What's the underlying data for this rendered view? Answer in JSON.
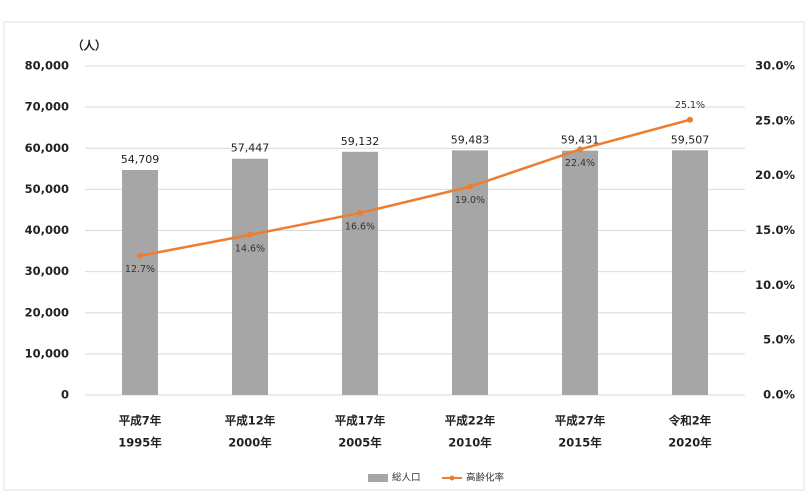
{
  "chart_data": {
    "type": "bar",
    "y_unit_label": "（人）",
    "categories": [
      [
        "平成7年",
        "1995年"
      ],
      [
        "平成12年",
        "2000年"
      ],
      [
        "平成17年",
        "2005年"
      ],
      [
        "平成22年",
        "2010年"
      ],
      [
        "平成27年",
        "2015年"
      ],
      [
        "令和2年",
        "2020年"
      ]
    ],
    "series": [
      {
        "name": "総人口",
        "type": "bar",
        "color": "#a6a6a6",
        "values": [
          54709,
          57447,
          59132,
          59483,
          59431,
          59507
        ],
        "value_labels": [
          "54,709",
          "57,447",
          "59,132",
          "59,483",
          "59,431",
          "59,507"
        ]
      },
      {
        "name": "高齢化率",
        "type": "line",
        "axis": "y2",
        "color": "#ed7d31",
        "values": [
          12.7,
          14.6,
          16.6,
          19.0,
          22.4,
          25.1
        ],
        "value_labels": [
          "12.7%",
          "14.6%",
          "16.6%",
          "19.0%",
          "22.4%",
          "25.1%"
        ]
      }
    ],
    "ylim": [
      0,
      80000
    ],
    "yticks": [
      0,
      {
        "value": 10000,
        "label": "10,000"
      },
      {
        "value": 20000,
        "label": "20,000"
      },
      {
        "value": 30000,
        "label": "30,000"
      },
      {
        "value": 40000,
        "label": "40,000"
      },
      {
        "value": 50000,
        "label": "50,000"
      },
      {
        "value": 60000,
        "label": "60,000"
      },
      {
        "value": 70000,
        "label": "70,000"
      },
      {
        "value": 80000,
        "label": "80,000"
      }
    ],
    "y2lim": [
      0,
      30
    ],
    "y2ticks": [
      {
        "value": 0,
        "label": "0.0%"
      },
      {
        "value": 5,
        "label": "5.0%"
      },
      {
        "value": 10,
        "label": "10.0%"
      },
      {
        "value": 15,
        "label": "15.0%"
      },
      {
        "value": 20,
        "label": "20.0%"
      },
      {
        "value": 25,
        "label": "25.0%"
      },
      {
        "value": 30,
        "label": "30.0%"
      }
    ],
    "grid": true,
    "legend": "bottom"
  }
}
